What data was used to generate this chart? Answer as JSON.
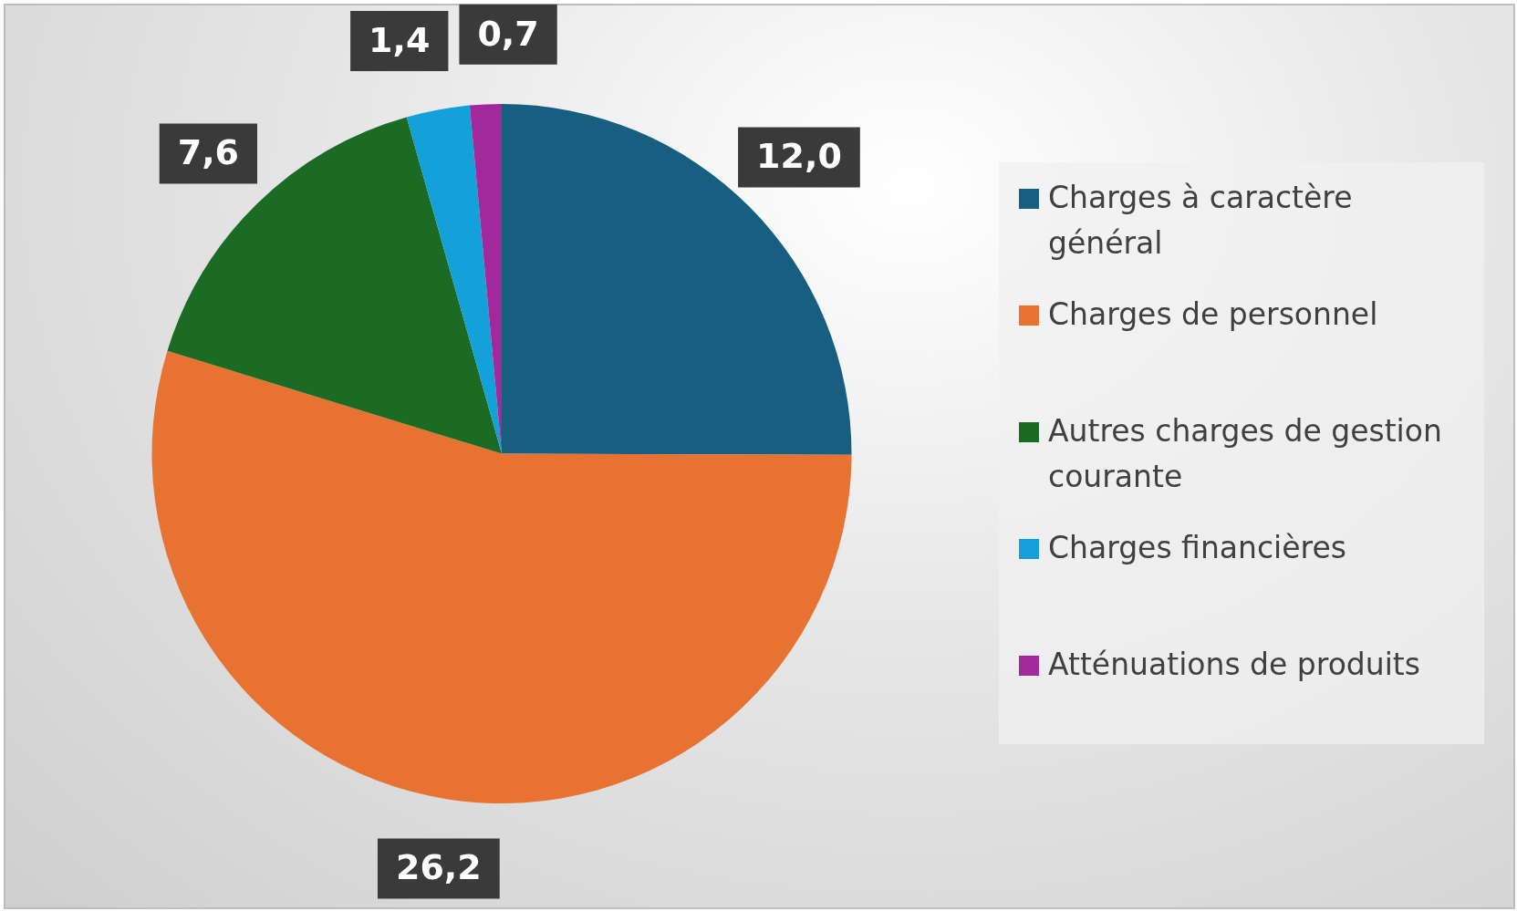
{
  "chart_data": {
    "type": "pie",
    "categories": [
      "Charges à caractère général",
      "Charges de personnel",
      "Autres charges de gestion courante",
      "Charges financières",
      "Atténuations de produits"
    ],
    "values": [
      12.0,
      26.2,
      7.6,
      1.4,
      0.7
    ],
    "colors": [
      "#175e80",
      "#e87232",
      "#1b6b24",
      "#14a0d8",
      "#a1299b"
    ],
    "value_labels": [
      "12,0",
      "26,2",
      "7,6",
      "1,4",
      "0,7"
    ],
    "legend": "right"
  }
}
